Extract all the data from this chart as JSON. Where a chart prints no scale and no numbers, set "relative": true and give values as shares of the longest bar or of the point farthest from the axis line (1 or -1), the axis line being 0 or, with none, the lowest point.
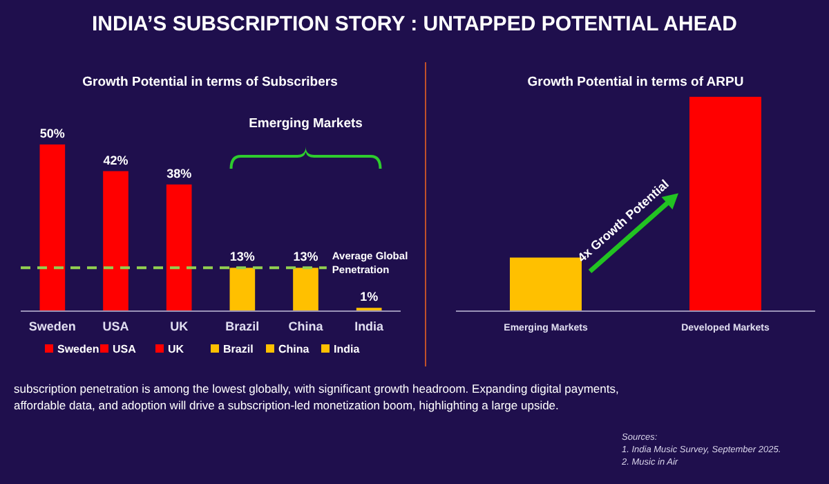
{
  "chart_data": [
    {
      "type": "bar",
      "title": "INDIA’S SUBSCRIPTION STORY : UNTAPPED POTENTIAL AHEAD",
      "subtitle": "Growth Potential in terms of Subscribers",
      "categories": [
        "Sweden",
        "USA",
        "UK",
        "Brazil",
        "China",
        "India"
      ],
      "series": [
        {
          "values": [
            50,
            42,
            38,
            13,
            13,
            1
          ],
          "colors": [
            "#ff0000",
            "#ff0000",
            "#ff0000",
            "#ffc000",
            "#ffc000",
            "#ffc000"
          ],
          "value_labels": [
            "50%",
            "42%",
            "38%",
            "13%",
            "13%",
            "1%"
          ]
        }
      ],
      "tick_labels": "x",
      "legend": "bottom",
      "ref_lines": [
        {
          "axis": "y",
          "value": 13,
          "label": "Average Global Penetration",
          "color": "#92d050",
          "line_style": "dashed"
        }
      ],
      "annotations": [
        "Emerging Markets",
        "subscription penetration is among the lowest globally, with significant growth headroom. Expanding digital payments, affordable data, and adoption will drive a subscription-led monetization boom,  highlighting a large upside.",
        "Sources:",
        "1. India Music Survey, September 2025.",
        "2. Music in Air"
      ]
    },
    {
      "type": "bar",
      "title": "Growth Potential in terms of ARPU",
      "categories": [
        "Emerging Markets",
        "Developed Markets"
      ],
      "series": [
        {
          "values": [
            0.25,
            1
          ],
          "colors": [
            "#ffc000",
            "#ff0000"
          ]
        }
      ],
      "relative": true,
      "tick_labels": "x",
      "annotations": [
        "4x Growth Potential"
      ]
    }
  ]
}
